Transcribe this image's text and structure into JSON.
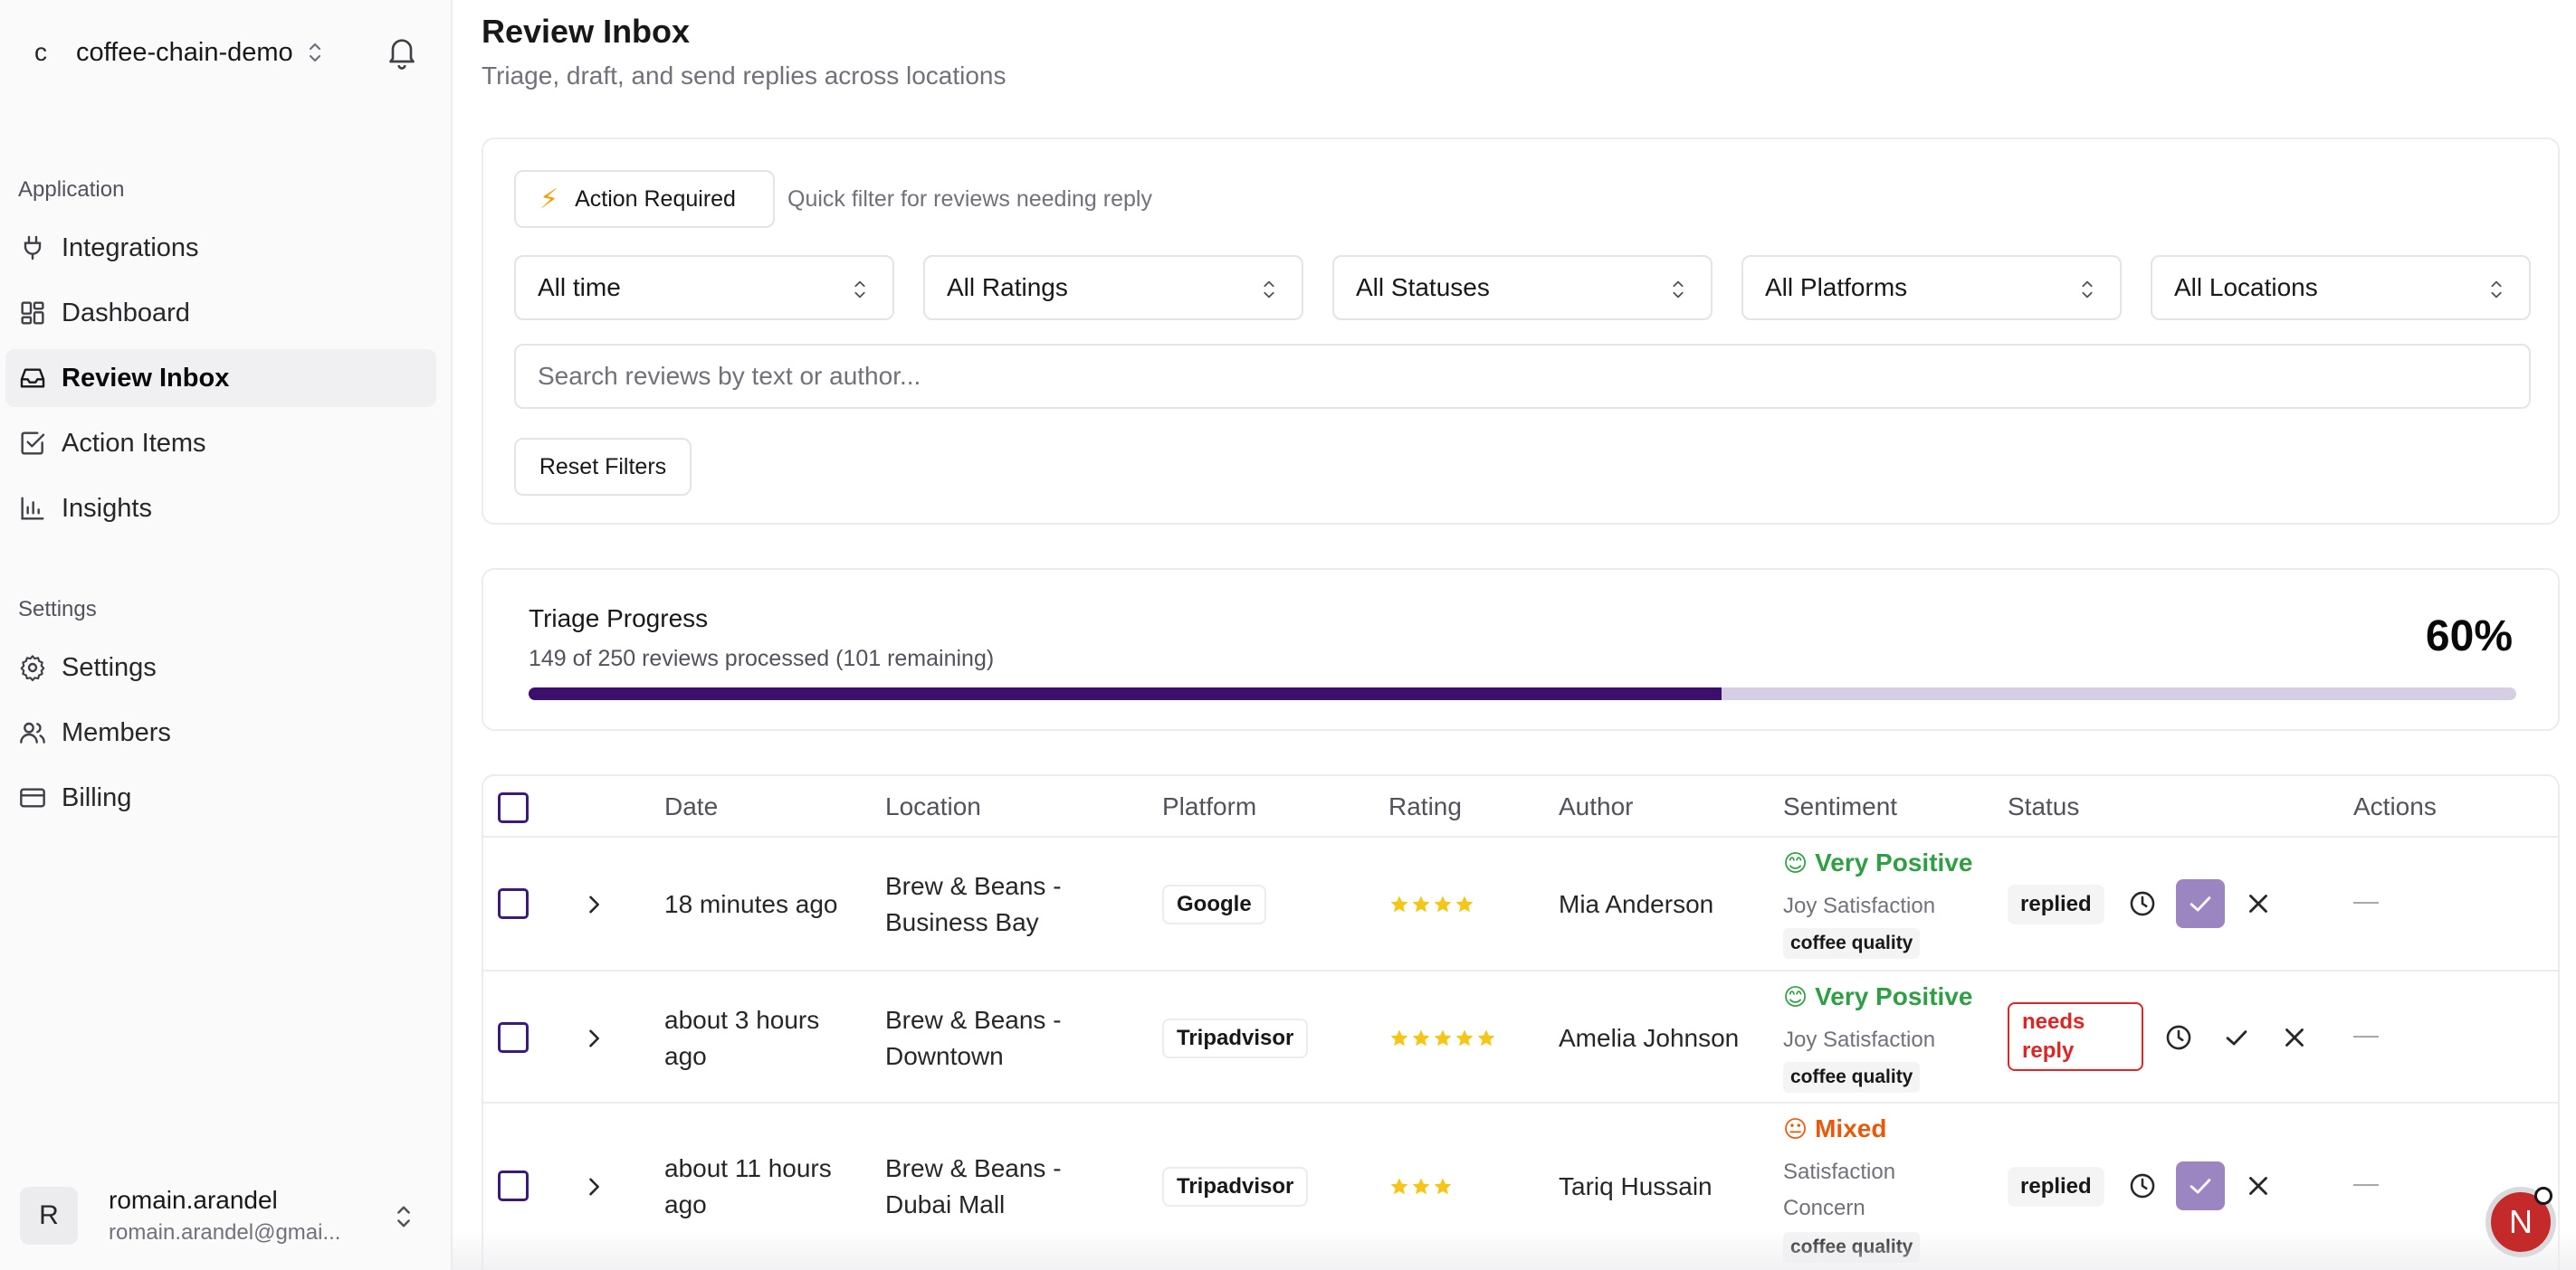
{
  "workspace": {
    "initial": "c",
    "name": "coffee-chain-demo"
  },
  "sidebar": {
    "groups": [
      {
        "label": "Application"
      },
      {
        "label": "Settings"
      }
    ],
    "items": [
      {
        "label": "Integrations",
        "icon": "plug-icon"
      },
      {
        "label": "Dashboard",
        "icon": "dashboard-icon"
      },
      {
        "label": "Review Inbox",
        "icon": "inbox-icon",
        "active": true
      },
      {
        "label": "Action Items",
        "icon": "checkbox-icon"
      },
      {
        "label": "Insights",
        "icon": "bar-chart-icon"
      },
      {
        "label": "Settings",
        "icon": "gear-icon"
      },
      {
        "label": "Members",
        "icon": "users-icon"
      },
      {
        "label": "Billing",
        "icon": "credit-card-icon"
      }
    ]
  },
  "user": {
    "initial": "R",
    "name": "romain.arandel",
    "email": "romain.arandel@gmai..."
  },
  "header": {
    "title": "Review Inbox",
    "subtitle": "Triage, draft, and send replies across locations"
  },
  "filters": {
    "action_required_label": "Action Required",
    "action_required_hint": "Quick filter for reviews needing reply",
    "selects": [
      "All time",
      "All Ratings",
      "All Statuses",
      "All Platforms",
      "All Locations"
    ],
    "search_placeholder": "Search reviews by text or author...",
    "reset_label": "Reset Filters"
  },
  "progress": {
    "title": "Triage Progress",
    "summary": "149 of 250 reviews processed (101 remaining)",
    "percent_label": "60%",
    "fraction": 0.6
  },
  "table": {
    "columns": [
      "Date",
      "Location",
      "Platform",
      "Rating",
      "Author",
      "Sentiment",
      "Status",
      "Actions"
    ],
    "rows": [
      {
        "date": "18 minutes ago",
        "location_line1": "Brew & Beans -",
        "location_line2": "Business Bay",
        "platform": "Google",
        "rating": 4,
        "author": "Mia Anderson",
        "sentiment": "Very Positive",
        "sentiment_face": "😊",
        "sentiment_color": "#2f9e44",
        "emotions_line1": "Joy Satisfaction",
        "emotions_line2": "",
        "tag": "coffee quality",
        "status": "replied",
        "actions_placeholder": "—"
      },
      {
        "date_line1": "about 3 hours",
        "date_line2": "ago",
        "location_line1": "Brew & Beans -",
        "location_line2": "Downtown",
        "platform": "Tripadvisor",
        "rating": 5,
        "author": "Amelia Johnson",
        "sentiment": "Very Positive",
        "sentiment_face": "😊",
        "sentiment_color": "#2f9e44",
        "emotions_line1": "Joy Satisfaction",
        "emotions_line2": "",
        "tag": "coffee quality",
        "status_line1": "needs",
        "status_line2": "reply",
        "actions_placeholder": "—"
      },
      {
        "date_line1": "about 11 hours",
        "date_line2": "ago",
        "location_line1": "Brew & Beans -",
        "location_line2": "Dubai Mall",
        "platform": "Tripadvisor",
        "rating": 3,
        "author": "Tariq Hussain",
        "sentiment": "Mixed",
        "sentiment_face": "😐",
        "sentiment_color": "#e8590c",
        "emotions_line1": "Satisfaction",
        "emotions_line2": "Concern",
        "tag": "coffee quality",
        "status": "replied",
        "actions_placeholder": "—"
      }
    ]
  },
  "fab": {
    "letter": "N"
  },
  "colors": {
    "accent": "#3b0f6b",
    "track": "#d6cfe3",
    "star": "#f5c518",
    "danger": "#dc2626"
  }
}
